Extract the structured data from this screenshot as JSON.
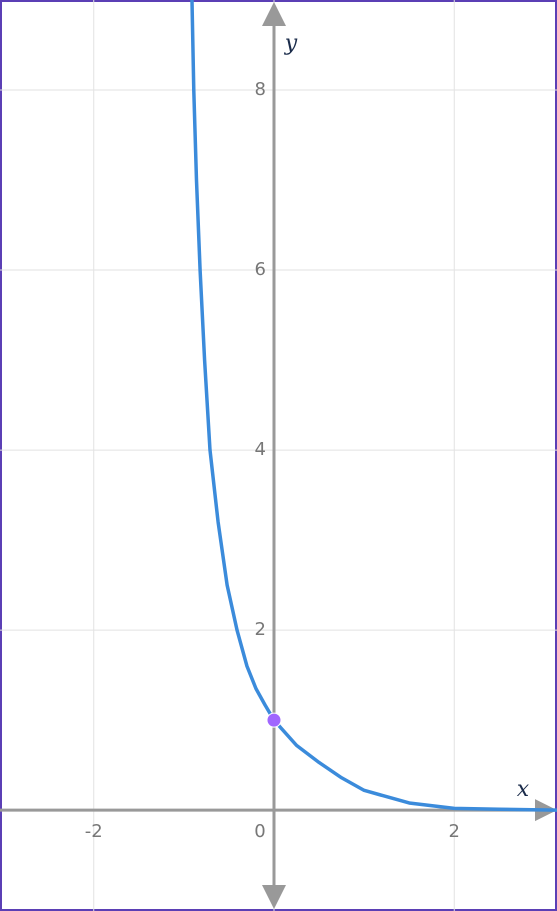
{
  "chart_data": {
    "type": "line",
    "x_label": "x",
    "y_label": "y",
    "xlim": [
      -3.04,
      3.14
    ],
    "ylim": [
      -1.12,
      9
    ],
    "xticks": [
      -2,
      0,
      2
    ],
    "yticks": [
      2,
      4,
      6,
      8
    ],
    "grid": true,
    "series": [
      {
        "color": "#3b8bdb",
        "x": [
          -0.91,
          -0.89,
          -0.86,
          -0.82,
          -0.77,
          -0.71,
          -0.62,
          -0.52,
          -0.41,
          -0.3,
          -0.2,
          -0.1,
          0,
          0.25,
          0.5,
          0.75,
          1,
          1.5,
          2,
          2.5,
          3.14
        ],
        "values": [
          9,
          8,
          7,
          6,
          5,
          4,
          3.2,
          2.5,
          2,
          1.6,
          1.35,
          1.17,
          1,
          0.72,
          0.53,
          0.36,
          0.22,
          0.08,
          0.02,
          0.01,
          0
        ]
      },
      {
        "color": "#a066ff",
        "marker": true,
        "x": [
          0
        ],
        "values": [
          1
        ]
      }
    ]
  }
}
